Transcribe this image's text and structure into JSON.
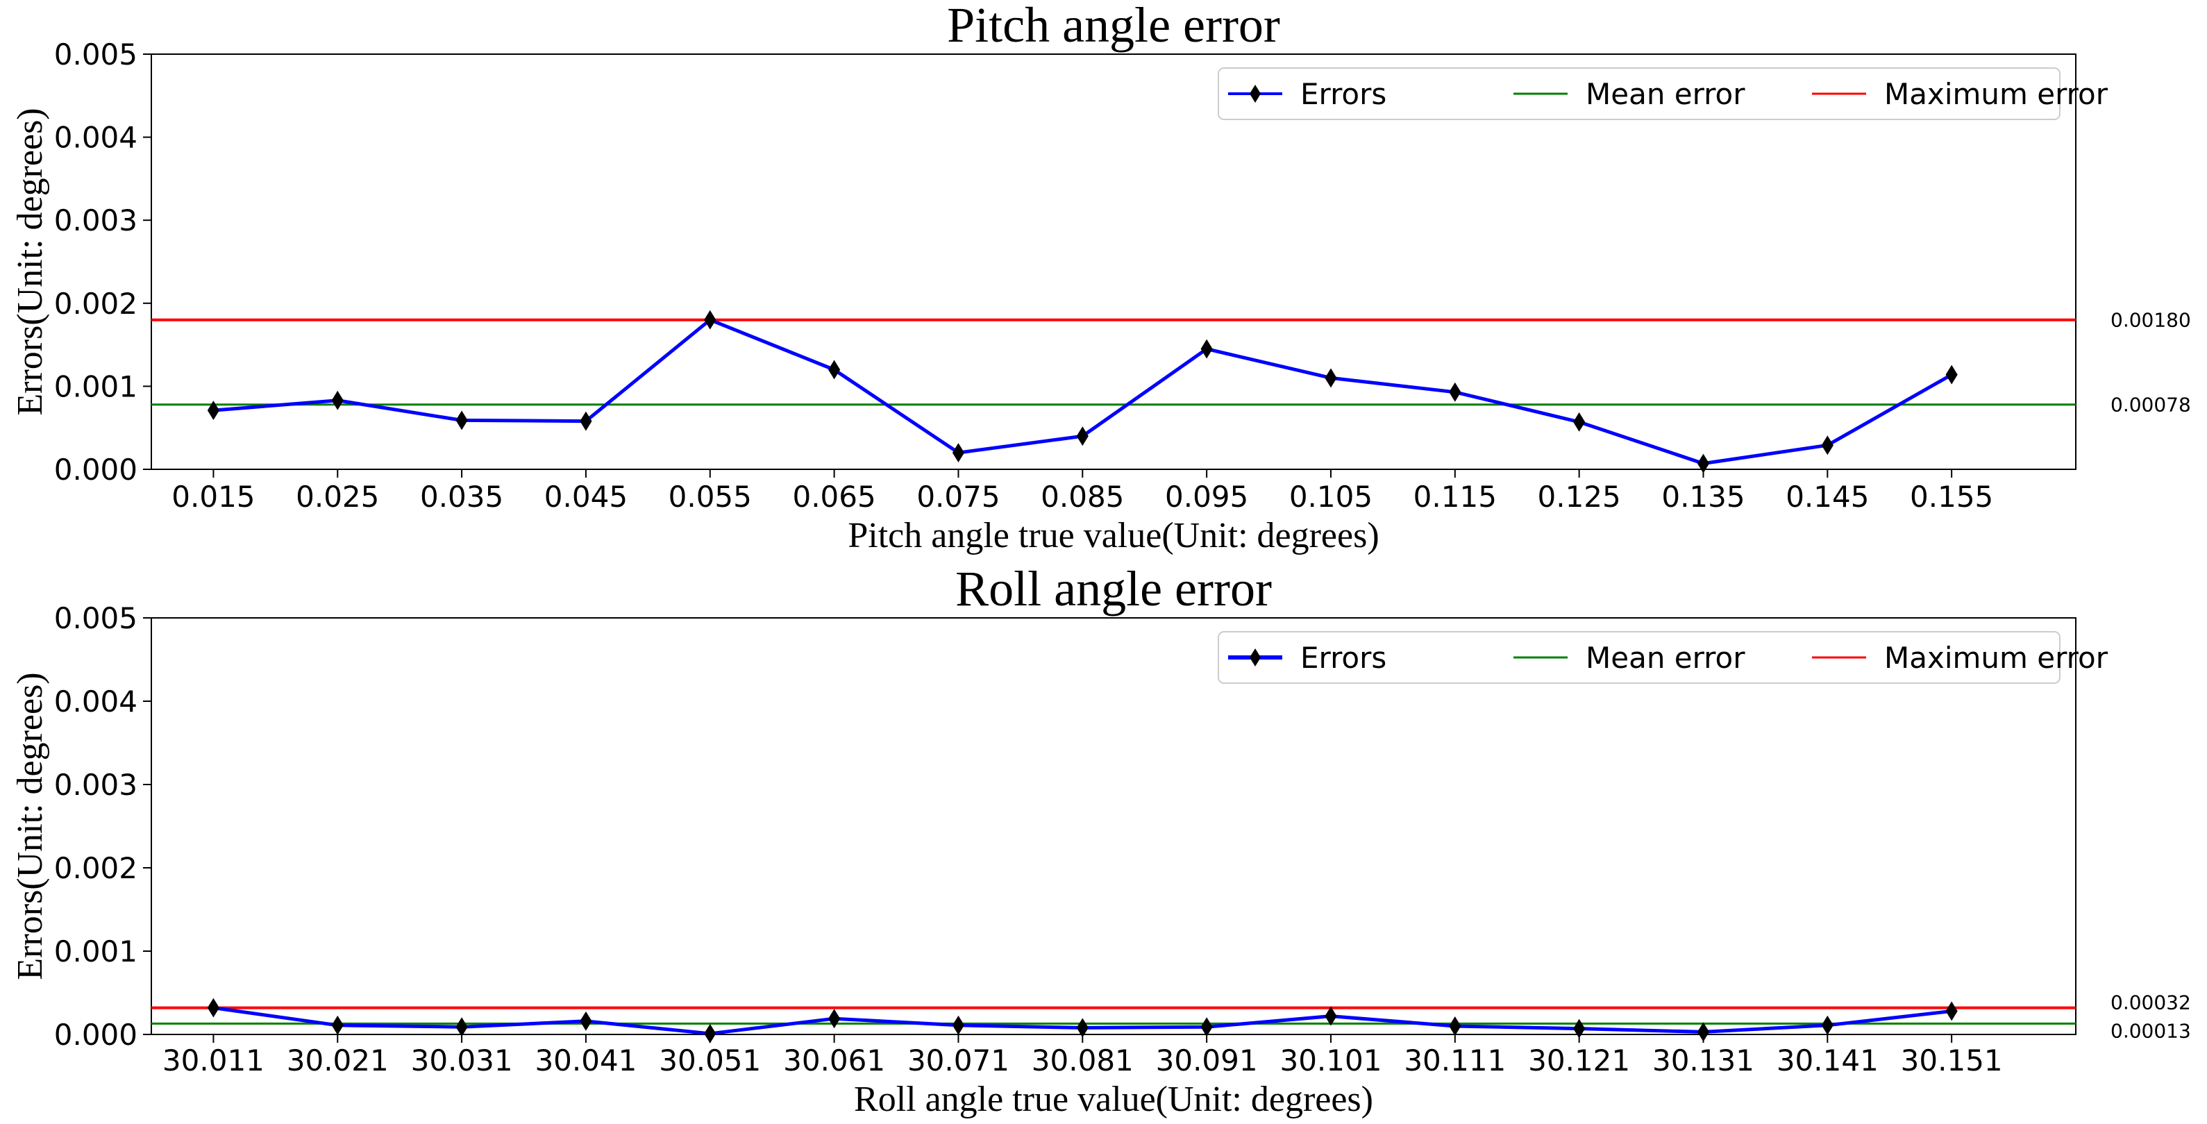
{
  "chart_data": [
    {
      "type": "line",
      "title": "Pitch angle error",
      "xlabel": "Pitch angle true value(Unit: degrees)",
      "ylabel": "Errors(Unit: degrees)",
      "ylim": [
        0,
        0.005
      ],
      "yticks": [
        "0.000",
        "0.001",
        "0.002",
        "0.003",
        "0.004",
        "0.005"
      ],
      "categories": [
        "0.015",
        "0.025",
        "0.035",
        "0.045",
        "0.055",
        "0.065",
        "0.075",
        "0.085",
        "0.095",
        "0.105",
        "0.115",
        "0.125",
        "0.135",
        "0.145",
        "0.155"
      ],
      "series": [
        {
          "name": "Errors",
          "color": "#0000ff",
          "marker": "thin-diamond",
          "values": [
            0.00071,
            0.00083,
            0.00059,
            0.00058,
            0.0018,
            0.0012,
            0.0002,
            0.0004,
            0.00145,
            0.0011,
            0.00093,
            0.00057,
            7e-05,
            0.00029,
            0.00114
          ]
        },
        {
          "name": "Mean error",
          "color": "#008000",
          "value": 0.00078
        },
        {
          "name": "Maximum error",
          "color": "#ff0000",
          "value": 0.0018
        }
      ],
      "annotations": [
        {
          "text": "0.00180",
          "y": 0.0018
        },
        {
          "text": "0.00078",
          "y": 0.00078
        }
      ],
      "legend": {
        "position": "top-right",
        "entries": [
          "Errors",
          "Mean error",
          "Maximum error"
        ]
      }
    },
    {
      "type": "line",
      "title": "Roll angle error",
      "xlabel": "Roll angle true value(Unit: degrees)",
      "ylabel": "Errors(Unit: degrees)",
      "ylim": [
        0,
        0.005
      ],
      "yticks": [
        "0.000",
        "0.001",
        "0.002",
        "0.003",
        "0.004",
        "0.005"
      ],
      "categories": [
        "30.011",
        "30.021",
        "30.031",
        "30.041",
        "30.051",
        "30.061",
        "30.071",
        "30.081",
        "30.091",
        "30.101",
        "30.111",
        "30.121",
        "30.131",
        "30.141",
        "30.151"
      ],
      "series": [
        {
          "name": "Errors",
          "color": "#0000ff",
          "marker": "thin-diamond",
          "values": [
            0.00032,
            0.00011,
            9e-05,
            0.00016,
            1e-05,
            0.00019,
            0.00011,
            8e-05,
            9e-05,
            0.00022,
            0.0001,
            7e-05,
            3e-05,
            0.00011,
            0.00028
          ]
        },
        {
          "name": "Mean error",
          "color": "#008000",
          "value": 0.00013
        },
        {
          "name": "Maximum error",
          "color": "#ff0000",
          "value": 0.00032
        }
      ],
      "annotations": [
        {
          "text": "0.00032",
          "y": 0.00032
        },
        {
          "text": "0.00013",
          "y": 0.00013
        }
      ],
      "legend": {
        "position": "top-right",
        "entries": [
          "Errors",
          "Mean error",
          "Maximum error"
        ]
      }
    }
  ]
}
